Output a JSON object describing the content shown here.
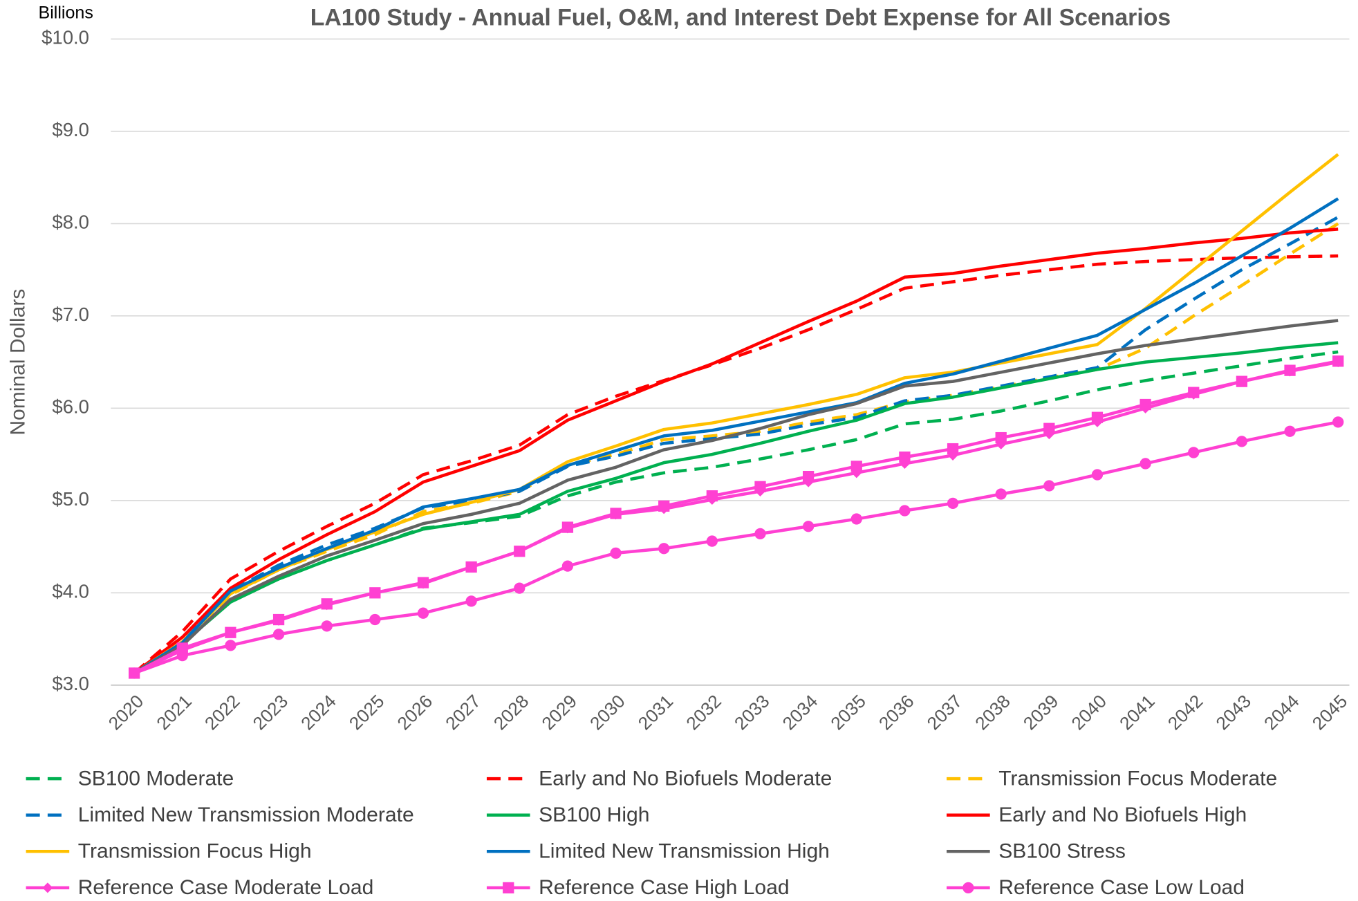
{
  "chart_data": {
    "type": "line",
    "title": "LA100 Study - Annual Fuel, O&M, and Interest Debt Expense for All Scenarios",
    "y_unit_label": "Billions",
    "y_axis_label": "Nominal Dollars",
    "categories": [
      "2020",
      "2021",
      "2022",
      "2023",
      "2024",
      "2025",
      "2026",
      "2027",
      "2028",
      "2029",
      "2030",
      "2031",
      "2032",
      "2033",
      "2034",
      "2035",
      "2036",
      "2037",
      "2038",
      "2039",
      "2040",
      "2041",
      "2042",
      "2043",
      "2044",
      "2045"
    ],
    "ylim": [
      3,
      10
    ],
    "yticks": [
      {
        "value": 3,
        "label": "$3.0"
      },
      {
        "value": 4,
        "label": "$4.0"
      },
      {
        "value": 5,
        "label": "$5.0"
      },
      {
        "value": 6,
        "label": "$6.0"
      },
      {
        "value": 7,
        "label": "$7.0"
      },
      {
        "value": 8,
        "label": "$8.0"
      },
      {
        "value": 9,
        "label": "$9.0"
      },
      {
        "value": 10,
        "label": "$10.0"
      }
    ],
    "grid": true,
    "legend": "bottom",
    "series": [
      {
        "name": "SB100 Moderate",
        "color": "#00b050",
        "dash": true,
        "marker": "none",
        "values": [
          3.13,
          3.45,
          3.92,
          4.15,
          4.35,
          4.52,
          4.7,
          4.76,
          4.83,
          5.05,
          5.2,
          5.3,
          5.36,
          5.45,
          5.55,
          5.66,
          5.83,
          5.88,
          5.97,
          6.08,
          6.2,
          6.3,
          6.38,
          6.46,
          6.54,
          6.61
        ]
      },
      {
        "name": "Early and No Biofuels Moderate",
        "color": "#ff0000",
        "dash": true,
        "marker": "none",
        "values": [
          3.13,
          3.58,
          4.15,
          4.45,
          4.72,
          4.97,
          5.28,
          5.43,
          5.6,
          5.93,
          6.13,
          6.3,
          6.47,
          6.65,
          6.85,
          7.07,
          7.3,
          7.37,
          7.44,
          7.5,
          7.56,
          7.59,
          7.61,
          7.63,
          7.64,
          7.65
        ]
      },
      {
        "name": "Transmission Focus Moderate",
        "color": "#ffc000",
        "dash": true,
        "marker": "none",
        "values": [
          3.13,
          3.45,
          3.98,
          4.25,
          4.45,
          4.63,
          4.88,
          4.97,
          5.1,
          5.38,
          5.5,
          5.66,
          5.7,
          5.75,
          5.85,
          5.93,
          6.07,
          6.14,
          6.23,
          6.33,
          6.42,
          6.65,
          7.0,
          7.33,
          7.67,
          8.0
        ]
      },
      {
        "name": "Limited New Transmission Moderate",
        "color": "#0070c0",
        "dash": true,
        "marker": "none",
        "values": [
          3.13,
          3.47,
          4.02,
          4.3,
          4.52,
          4.7,
          4.92,
          5.0,
          5.1,
          5.37,
          5.48,
          5.62,
          5.67,
          5.72,
          5.82,
          5.9,
          6.08,
          6.14,
          6.24,
          6.34,
          6.44,
          6.85,
          7.18,
          7.5,
          7.78,
          8.07
        ]
      },
      {
        "name": "SB100 High",
        "color": "#00b050",
        "dash": false,
        "marker": "none",
        "values": [
          3.13,
          3.45,
          3.9,
          4.15,
          4.35,
          4.52,
          4.69,
          4.77,
          4.85,
          5.1,
          5.24,
          5.41,
          5.5,
          5.62,
          5.75,
          5.87,
          6.05,
          6.12,
          6.22,
          6.32,
          6.42,
          6.5,
          6.55,
          6.6,
          6.66,
          6.71
        ]
      },
      {
        "name": "Early and No Biofuels High",
        "color": "#ff0000",
        "dash": false,
        "marker": "none",
        "values": [
          3.13,
          3.52,
          4.05,
          4.36,
          4.63,
          4.88,
          5.2,
          5.37,
          5.54,
          5.87,
          6.08,
          6.29,
          6.48,
          6.71,
          6.94,
          7.16,
          7.42,
          7.46,
          7.54,
          7.61,
          7.68,
          7.73,
          7.79,
          7.84,
          7.9,
          7.94
        ]
      },
      {
        "name": "Transmission Focus High",
        "color": "#ffc000",
        "dash": false,
        "marker": "none",
        "values": [
          3.13,
          3.47,
          3.99,
          4.25,
          4.47,
          4.66,
          4.85,
          4.98,
          5.12,
          5.42,
          5.59,
          5.77,
          5.84,
          5.94,
          6.04,
          6.15,
          6.33,
          6.39,
          6.49,
          6.59,
          6.69,
          7.08,
          7.5,
          7.92,
          8.34,
          8.75
        ]
      },
      {
        "name": "Limited New Transmission High",
        "color": "#0070c0",
        "dash": false,
        "marker": "none",
        "values": [
          3.13,
          3.46,
          4.02,
          4.27,
          4.48,
          4.68,
          4.93,
          5.02,
          5.12,
          5.38,
          5.54,
          5.7,
          5.76,
          5.86,
          5.96,
          6.06,
          6.27,
          6.37,
          6.51,
          6.65,
          6.79,
          7.07,
          7.35,
          7.65,
          7.95,
          8.27
        ]
      },
      {
        "name": "SB100 Stress",
        "color": "#636363",
        "dash": false,
        "marker": "none",
        "values": [
          3.13,
          3.43,
          3.93,
          4.18,
          4.4,
          4.57,
          4.75,
          4.85,
          4.97,
          5.22,
          5.36,
          5.55,
          5.65,
          5.78,
          5.93,
          6.05,
          6.24,
          6.29,
          6.39,
          6.49,
          6.59,
          6.68,
          6.75,
          6.82,
          6.89,
          6.95
        ]
      },
      {
        "name": "Reference Case Moderate Load",
        "color": "#ff40d2",
        "dash": false,
        "marker": "diamond",
        "values": [
          3.13,
          3.38,
          3.57,
          3.7,
          3.87,
          4.0,
          4.1,
          4.28,
          4.45,
          4.7,
          4.85,
          4.91,
          5.01,
          5.1,
          5.2,
          5.3,
          5.4,
          5.49,
          5.61,
          5.72,
          5.85,
          6.0,
          6.15,
          6.29,
          6.4,
          6.5
        ]
      },
      {
        "name": "Reference Case High Load",
        "color": "#ff40d2",
        "dash": false,
        "marker": "square",
        "values": [
          3.13,
          3.4,
          3.57,
          3.71,
          3.88,
          4.0,
          4.11,
          4.28,
          4.45,
          4.71,
          4.86,
          4.94,
          5.05,
          5.15,
          5.26,
          5.37,
          5.47,
          5.56,
          5.68,
          5.78,
          5.9,
          6.04,
          6.17,
          6.29,
          6.41,
          6.51
        ]
      },
      {
        "name": "Reference Case Low Load",
        "color": "#ff40d2",
        "dash": false,
        "marker": "circle",
        "values": [
          3.13,
          3.32,
          3.43,
          3.55,
          3.64,
          3.71,
          3.78,
          3.91,
          4.05,
          4.29,
          4.43,
          4.48,
          4.56,
          4.64,
          4.72,
          4.8,
          4.89,
          4.97,
          5.07,
          5.16,
          5.28,
          5.4,
          5.52,
          5.64,
          5.75,
          5.85
        ]
      }
    ]
  }
}
